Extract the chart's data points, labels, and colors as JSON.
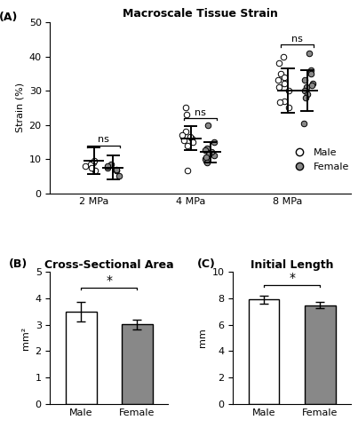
{
  "title_A": "Macroscale Tissue Strain",
  "title_B": "Cross-Sectional Area",
  "title_C": "Initial Length",
  "label_A": "(A)",
  "label_B": "(B)",
  "label_C": "(C)",
  "ylabel_A": "Strain (%)",
  "ylabel_B": "mm²",
  "ylabel_C": "mm",
  "xlabel_A": [
    "2 MPa",
    "4 MPa",
    "8 MPa"
  ],
  "ylim_A": [
    0,
    50
  ],
  "yticks_A": [
    0,
    10,
    20,
    30,
    40,
    50
  ],
  "ylim_B": [
    0,
    5
  ],
  "yticks_B": [
    0,
    1,
    2,
    3,
    4,
    5
  ],
  "ylim_C": [
    0,
    10
  ],
  "yticks_C": [
    0,
    2,
    4,
    6,
    8,
    10
  ],
  "male_2MPa": [
    9.0,
    8.5,
    6.5,
    8.0,
    9.5,
    7.5
  ],
  "female_2MPa": [
    8.5,
    7.5,
    5.0,
    8.0,
    6.5,
    7.0
  ],
  "male_4MPa": [
    25.0,
    23.0,
    16.0,
    18.0,
    15.0,
    14.0,
    17.0,
    16.5,
    15.5,
    6.5
  ],
  "female_4MPa": [
    20.0,
    15.0,
    11.0,
    13.0,
    12.0,
    10.0,
    11.5,
    12.5,
    10.5,
    9.0
  ],
  "male_8MPa": [
    40.0,
    38.0,
    35.0,
    33.0,
    30.0,
    27.0,
    26.5,
    25.0,
    32.0,
    31.0,
    34.0
  ],
  "female_8MPa": [
    41.0,
    36.0,
    35.0,
    33.0,
    32.0,
    31.0,
    30.0,
    29.0,
    28.0,
    20.5,
    31.5
  ],
  "mean_2MPa_male": 9.5,
  "mean_2MPa_female": 7.5,
  "err_2MPa_male": 4.0,
  "err_2MPa_female": 3.5,
  "mean_4MPa_male": 16.0,
  "mean_4MPa_female": 12.0,
  "err_4MPa_male": 3.5,
  "err_4MPa_female": 3.0,
  "mean_8MPa_male": 30.0,
  "mean_8MPa_female": 30.0,
  "err_8MPa_male": 6.5,
  "err_8MPa_female": 6.0,
  "bar_B_male": 3.5,
  "bar_B_female": 3.02,
  "err_B_male": 0.38,
  "err_B_female": 0.18,
  "bar_C_male": 7.9,
  "bar_C_female": 7.48,
  "err_C_male": 0.28,
  "err_C_female": 0.22,
  "color_male": "#ffffff",
  "color_female": "#888888",
  "color_edge": "#000000",
  "ns_text": "ns",
  "sig_text": "*",
  "background_color": "#ffffff",
  "fontsize_title": 9,
  "fontsize_label": 8,
  "fontsize_tick": 8,
  "fontsize_legend": 8,
  "fontsize_panel": 9,
  "fontsize_ns": 8
}
